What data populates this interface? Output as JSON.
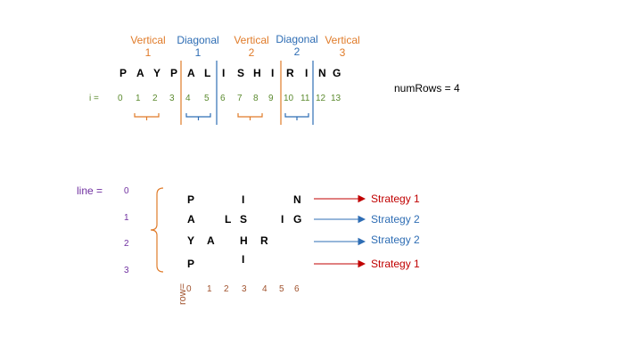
{
  "segments": [
    {
      "label": "Vertical",
      "num": "1",
      "color": "#E07B29"
    },
    {
      "label": "Diagonal",
      "num": "1",
      "color": "#2E6DB4"
    },
    {
      "label": "Vertical",
      "num": "2",
      "color": "#E07B29"
    },
    {
      "label": "Diagonal",
      "num": "2",
      "color": "#2E6DB4"
    },
    {
      "label": "Vertical",
      "num": "3",
      "color": "#E07B29"
    }
  ],
  "string_letters": [
    "P",
    "A",
    "Y",
    "P",
    "A",
    "L",
    "I",
    "S",
    "H",
    "I",
    "R",
    "I",
    "N",
    "G"
  ],
  "i_label": "i =",
  "i_values": [
    "0",
    "1",
    "2",
    "3",
    "4",
    "5",
    "6",
    "7",
    "8",
    "9",
    "10",
    "11",
    "12",
    "13"
  ],
  "num_rows_label": "numRows = 4",
  "line_label": "line =",
  "line_values": [
    "0",
    "1",
    "2",
    "3"
  ],
  "grid": {
    "row0": [
      "P",
      "I",
      "N"
    ],
    "row1": [
      "A",
      "L",
      "S",
      "I",
      "G"
    ],
    "row2": [
      "Y",
      "A",
      "H",
      "R"
    ],
    "row3": [
      "P",
      "I"
    ]
  },
  "row_label": "row=",
  "row_values": [
    "0",
    "1",
    "2",
    "3",
    "4",
    "5",
    "6"
  ],
  "strategies": [
    {
      "label": "Strategy 1",
      "color": "#C00000"
    },
    {
      "label": "Strategy 2",
      "color": "#2E6DB4"
    },
    {
      "label": "Strategy 2",
      "color": "#2E6DB4"
    },
    {
      "label": "Strategy 1",
      "color": "#C00000"
    }
  ]
}
